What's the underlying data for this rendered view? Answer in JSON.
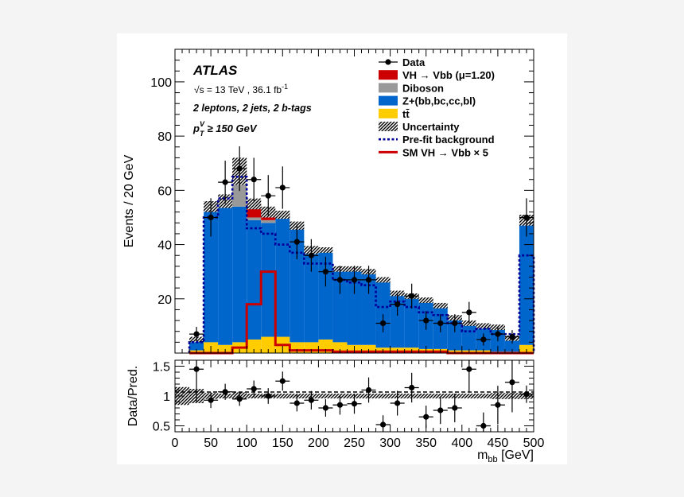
{
  "chart_data": [
    {
      "type": "bar",
      "subtype": "stacked-histogram",
      "ylabel": "Events / 20 GeV",
      "ylim": [
        0,
        112
      ],
      "y_ticks": [
        "20",
        "40",
        "60",
        "80",
        "100"
      ],
      "bin_edges": [
        0,
        20,
        40,
        60,
        80,
        100,
        120,
        140,
        160,
        180,
        200,
        220,
        240,
        260,
        280,
        300,
        320,
        340,
        360,
        380,
        400,
        420,
        440,
        460,
        480,
        500
      ],
      "bins_start": 20,
      "stack": [
        {
          "name": "tt",
          "color": "#ffcc00",
          "values": [
            1,
            4,
            3,
            4,
            5,
            6,
            6,
            4,
            4,
            5,
            4,
            3,
            3,
            2,
            2,
            2,
            1.5,
            1.5,
            1,
            1,
            1,
            0.5,
            0.5,
            3
          ]
        },
        {
          "name": "Z+(bb,bc,cc,bl)",
          "color": "#0066cc",
          "values": [
            4,
            50,
            53,
            50,
            44,
            42,
            44,
            43,
            34,
            33,
            27,
            28,
            27,
            25,
            20,
            19,
            18,
            16,
            12,
            10,
            9,
            9,
            5,
            46
          ]
        },
        {
          "name": "Diboson",
          "color": "#999999",
          "values": [
            0,
            0,
            0,
            10,
            1,
            1,
            0,
            0,
            0,
            0,
            0,
            0,
            0,
            0,
            0,
            0,
            0,
            0,
            0,
            0,
            0,
            0,
            0,
            0
          ]
        },
        {
          "name": "VH → Vbb (μ=1.20)",
          "color": "#cc0000",
          "values": [
            0,
            0,
            0,
            3,
            5,
            3,
            1,
            0,
            0,
            0,
            0,
            0,
            0,
            0,
            0,
            0,
            0,
            0,
            0,
            0,
            0,
            0,
            0,
            0
          ]
        }
      ],
      "uncertainty": [
        1,
        2,
        2.5,
        5,
        2,
        2,
        1.5,
        1.5,
        1.5,
        1,
        1,
        1,
        1,
        1,
        1,
        1,
        1,
        1,
        1,
        1,
        1,
        1,
        1,
        2
      ],
      "prefit_background": [
        4,
        50,
        57,
        65,
        46,
        44,
        40,
        37,
        33,
        33,
        27,
        26,
        25,
        17,
        19,
        17,
        15,
        14,
        11,
        8,
        9,
        7,
        7,
        36
      ],
      "sm_vh_x5": [
        0,
        0,
        0,
        2,
        18,
        30,
        3,
        1,
        1,
        1,
        0.5,
        0.5,
        0.5,
        0.5,
        0.5,
        0.5,
        0.5,
        0.5,
        0,
        0,
        0,
        0,
        0,
        0
      ],
      "data": {
        "x": [
          30,
          50,
          70,
          90,
          110,
          130,
          150,
          170,
          190,
          210,
          230,
          250,
          270,
          290,
          310,
          330,
          350,
          370,
          390,
          410,
          430,
          450,
          470,
          490
        ],
        "y": [
          7,
          50,
          63,
          68,
          64,
          58,
          61,
          41,
          36,
          30,
          27,
          27,
          27,
          11,
          18,
          21,
          12,
          11,
          11,
          15,
          5,
          7,
          6,
          50
        ]
      },
      "legend": [
        {
          "label": "Data",
          "kind": "marker"
        },
        {
          "label": "VH → Vbb (μ=1.20)",
          "kind": "fill",
          "color": "#cc0000"
        },
        {
          "label": "Diboson",
          "kind": "fill",
          "color": "#999999"
        },
        {
          "label": "Z+(bb,bc,cc,bl)",
          "kind": "fill",
          "color": "#0066cc"
        },
        {
          "label": "tt̄",
          "kind": "fill",
          "color": "#ffcc00"
        },
        {
          "label": "Uncertainty",
          "kind": "hatch"
        },
        {
          "label": "Pre-fit background",
          "kind": "dotted",
          "color": "#000099"
        },
        {
          "label": "SM VH → Vbb × 5",
          "kind": "line",
          "color": "#cc0000"
        }
      ],
      "legend_position": "top-right"
    },
    {
      "type": "scatter",
      "subtype": "ratio",
      "ylabel": "Data/Pred.",
      "ylim": [
        0.4,
        1.6
      ],
      "y_ticks": [
        "0.5",
        "1",
        "1.5"
      ],
      "xlabel": "m_bb [GeV]",
      "xlim": [
        0,
        500
      ],
      "x_ticks": [
        "0",
        "50",
        "100",
        "150",
        "200",
        "250",
        "300",
        "350",
        "400",
        "450",
        "500"
      ],
      "uncertainty_band": [
        0.12,
        0.05,
        0.04,
        0.06,
        0.04,
        0.04,
        0.04,
        0.04,
        0.04,
        0.04,
        0.04,
        0.04,
        0.04,
        0.04,
        0.04,
        0.04,
        0.04,
        0.04,
        0.04,
        0.04,
        0.04,
        0.05,
        0.05,
        0.05
      ],
      "x": [
        30,
        50,
        70,
        90,
        110,
        130,
        150,
        170,
        190,
        210,
        230,
        250,
        270,
        290,
        310,
        330,
        350,
        370,
        390,
        410,
        430,
        450,
        470,
        490
      ],
      "y": [
        1.45,
        0.93,
        1.07,
        0.95,
        1.12,
        1.0,
        1.25,
        0.88,
        0.93,
        0.8,
        0.85,
        0.87,
        1.1,
        0.52,
        0.88,
        1.14,
        0.65,
        0.76,
        0.8,
        1.45,
        0.5,
        0.85,
        1.23,
        1.03
      ]
    }
  ],
  "annotations": {
    "experiment": "ATLAS",
    "energy_prefix": "√s = 13 TeV , 36.1 fb",
    "energy_exponent": "-1",
    "selection": "2 leptons, 2 jets, 2 b-tags",
    "pt_cut_symbol": "p",
    "pt_cut_superscript": "V",
    "pt_cut_subscript": "T",
    "pt_cut_text": "≥ 150 GeV"
  }
}
